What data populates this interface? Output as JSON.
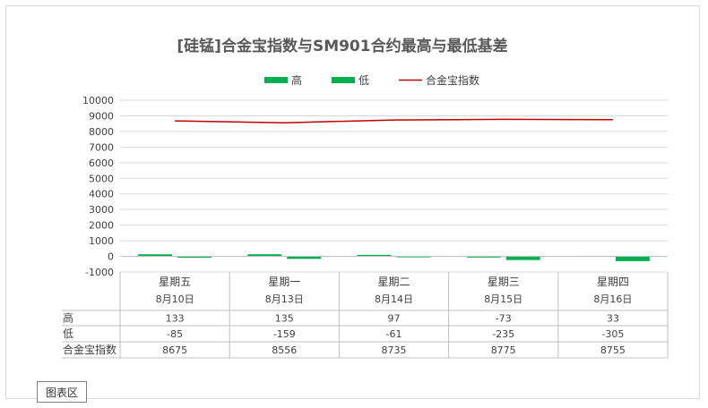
{
  "chart_data": {
    "type": "bar",
    "title": "[硅锰]合金宝指数与SM901合约最高与最低基差",
    "categories": [
      {
        "weekday": "星期五",
        "date": "8月10日"
      },
      {
        "weekday": "星期一",
        "date": "8月13日"
      },
      {
        "weekday": "星期二",
        "date": "8月14日"
      },
      {
        "weekday": "星期三",
        "date": "8月15日"
      },
      {
        "weekday": "星期四",
        "date": "8月16日"
      }
    ],
    "series": [
      {
        "name": "高",
        "type": "bar",
        "color": "#00b050",
        "values": [
          133,
          135,
          97,
          -73,
          33
        ]
      },
      {
        "name": "低",
        "type": "bar",
        "color": "#00b050",
        "values": [
          -85,
          -159,
          -61,
          -235,
          -305
        ]
      },
      {
        "name": "合金宝指数",
        "type": "line",
        "color": "#c00000",
        "values": [
          8675,
          8556,
          8735,
          8775,
          8755
        ]
      }
    ],
    "yaxis": {
      "min": -1000,
      "max": 10000,
      "step": 1000
    },
    "ticks": [
      "-1000",
      "0",
      "1000",
      "2000",
      "3000",
      "4000",
      "5000",
      "6000",
      "7000",
      "8000",
      "9000",
      "10000"
    ],
    "table": {
      "rows": [
        {
          "label": "高",
          "cells": [
            "133",
            "135",
            "97",
            "-73",
            "33"
          ]
        },
        {
          "label": "低",
          "cells": [
            "-85",
            "-159",
            "-61",
            "-235",
            "-305"
          ]
        },
        {
          "label": "合金宝指数",
          "cells": [
            "8675",
            "8556",
            "8735",
            "8775",
            "8755"
          ]
        }
      ]
    },
    "legend_position": "top",
    "grid": true
  },
  "chart_area_label": "图表区"
}
